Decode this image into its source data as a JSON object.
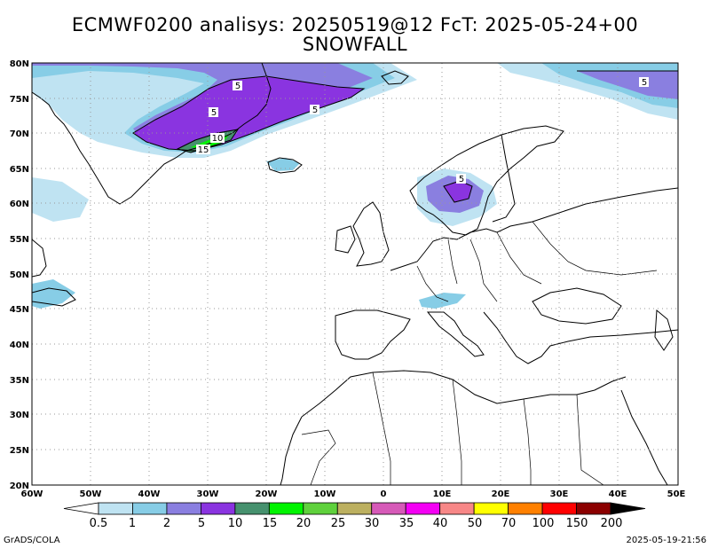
{
  "title": {
    "line1": "ECMWF0200 analisys: 20250519@12 FcT: 2025-05-24+00",
    "line2": "SNOWFALL"
  },
  "axes": {
    "lat_labels": [
      "20N",
      "25N",
      "30N",
      "35N",
      "40N",
      "45N",
      "50N",
      "55N",
      "60N",
      "65N",
      "70N",
      "75N",
      "80N"
    ],
    "lon_labels": [
      "60W",
      "50W",
      "40W",
      "30W",
      "20W",
      "10W",
      "0",
      "10E",
      "20E",
      "30E",
      "40E",
      "50E"
    ]
  },
  "contour_labels": [
    "5",
    "5",
    "5",
    "5",
    "10",
    "15",
    "5"
  ],
  "colorbar": {
    "labels": [
      "0.5",
      "1",
      "2",
      "5",
      "10",
      "15",
      "20",
      "25",
      "30",
      "35",
      "40",
      "50",
      "70",
      "100",
      "150",
      "200"
    ],
    "colors": [
      "#ffffff",
      "#bfe3f2",
      "#87cde6",
      "#8a7fe0",
      "#8a34e0",
      "#46916e",
      "#00f400",
      "#5fd13c",
      "#bcb060",
      "#d65ab8",
      "#f400f4",
      "#f78787",
      "#ffff00",
      "#ff8000",
      "#ff0000",
      "#8b0000",
      "#000000"
    ]
  },
  "footer": {
    "left": "GrADS/COLA",
    "right": "2025-05-19-21:56"
  }
}
